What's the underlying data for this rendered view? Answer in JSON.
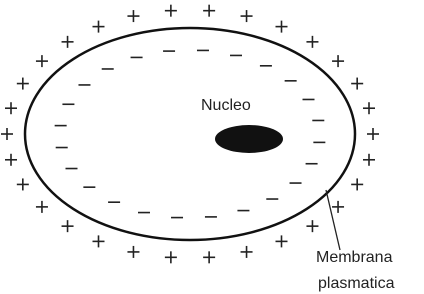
{
  "nucleus": {
    "label": "Nucleo"
  },
  "membrane": {
    "label_lines": [
      "Membrana",
      "plasmatica"
    ]
  }
}
